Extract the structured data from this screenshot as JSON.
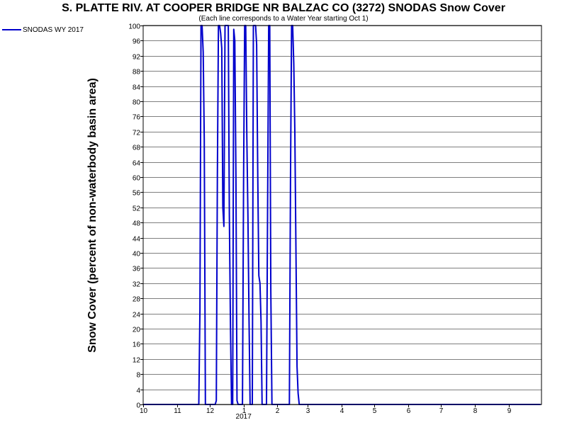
{
  "chart_data": {
    "type": "line",
    "title": "S. PLATTE RIV. AT COOPER BRIDGE NR BALZAC CO (3272) SNODAS Snow Cover",
    "subtitle": "(Each line corresponds to a Water Year starting Oct 1)",
    "ylabel": "Snow Cover (percent of non-waterbody basin area)",
    "xlabel": "",
    "ylim": [
      0,
      100
    ],
    "y_ticks": [
      "0",
      "4",
      "8",
      "12",
      "16",
      "20",
      "24",
      "28",
      "32",
      "36",
      "40",
      "44",
      "48",
      "52",
      "56",
      "60",
      "64",
      "68",
      "72",
      "76",
      "80",
      "84",
      "88",
      "92",
      "96",
      "100"
    ],
    "x_ticks": [
      {
        "label": "10",
        "date": "2016-10-01"
      },
      {
        "label": "11",
        "date": "2016-11-01"
      },
      {
        "label": "12",
        "date": "2016-12-01"
      },
      {
        "label": "1",
        "date": "2017-01-01"
      },
      {
        "label": "2",
        "date": "2017-02-01"
      },
      {
        "label": "3",
        "date": "2017-03-01"
      },
      {
        "label": "4",
        "date": "2017-04-01"
      },
      {
        "label": "5",
        "date": "2017-05-01"
      },
      {
        "label": "6",
        "date": "2017-06-01"
      },
      {
        "label": "7",
        "date": "2017-07-01"
      },
      {
        "label": "8",
        "date": "2017-08-01"
      },
      {
        "label": "9",
        "date": "2017-09-01"
      }
    ],
    "year_label": "2017",
    "xlim": [
      "2016-10-01",
      "2017-09-30"
    ],
    "grid": true,
    "legend_position": "top-left",
    "series": [
      {
        "name": "SNODAS WY 2017",
        "color": "#0000cc",
        "points": [
          [
            "2016-10-01",
            0
          ],
          [
            "2016-11-21",
            0
          ],
          [
            "2016-11-22",
            25
          ],
          [
            "2016-11-23",
            100
          ],
          [
            "2016-11-24",
            100
          ],
          [
            "2016-11-25",
            93
          ],
          [
            "2016-11-26",
            70
          ],
          [
            "2016-11-27",
            0
          ],
          [
            "2016-12-06",
            0
          ],
          [
            "2016-12-07",
            1
          ],
          [
            "2016-12-08",
            60
          ],
          [
            "2016-12-09",
            100
          ],
          [
            "2016-12-10",
            100
          ],
          [
            "2016-12-11",
            98
          ],
          [
            "2016-12-12",
            94
          ],
          [
            "2016-12-13",
            52
          ],
          [
            "2016-12-14",
            47
          ],
          [
            "2016-12-15",
            100
          ],
          [
            "2016-12-16",
            100
          ],
          [
            "2016-12-17",
            100
          ],
          [
            "2016-12-18",
            100
          ],
          [
            "2016-12-19",
            50
          ],
          [
            "2016-12-20",
            20
          ],
          [
            "2016-12-21",
            0
          ],
          [
            "2016-12-22",
            0
          ],
          [
            "2016-12-23",
            99
          ],
          [
            "2016-12-24",
            96
          ],
          [
            "2016-12-25",
            60
          ],
          [
            "2016-12-26",
            1
          ],
          [
            "2016-12-27",
            0
          ],
          [
            "2016-12-31",
            0
          ],
          [
            "2017-01-01",
            60
          ],
          [
            "2017-01-02",
            100
          ],
          [
            "2017-01-03",
            100
          ],
          [
            "2017-01-04",
            70
          ],
          [
            "2017-01-05",
            50
          ],
          [
            "2017-01-06",
            22
          ],
          [
            "2017-01-07",
            0
          ],
          [
            "2017-01-09",
            0
          ],
          [
            "2017-01-10",
            100
          ],
          [
            "2017-01-11",
            100
          ],
          [
            "2017-01-12",
            100
          ],
          [
            "2017-01-13",
            95
          ],
          [
            "2017-01-14",
            60
          ],
          [
            "2017-01-15",
            34
          ],
          [
            "2017-01-16",
            32
          ],
          [
            "2017-01-17",
            22
          ],
          [
            "2017-01-18",
            0
          ],
          [
            "2017-01-22",
            0
          ],
          [
            "2017-01-23",
            50
          ],
          [
            "2017-01-24",
            100
          ],
          [
            "2017-01-25",
            100
          ],
          [
            "2017-01-26",
            30
          ],
          [
            "2017-01-27",
            0
          ],
          [
            "2017-02-12",
            0
          ],
          [
            "2017-02-13",
            60
          ],
          [
            "2017-02-14",
            100
          ],
          [
            "2017-02-15",
            100
          ],
          [
            "2017-02-16",
            90
          ],
          [
            "2017-02-17",
            72
          ],
          [
            "2017-02-18",
            40
          ],
          [
            "2017-02-19",
            10
          ],
          [
            "2017-02-20",
            3
          ],
          [
            "2017-02-21",
            0
          ],
          [
            "2017-09-30",
            0
          ]
        ]
      }
    ]
  }
}
